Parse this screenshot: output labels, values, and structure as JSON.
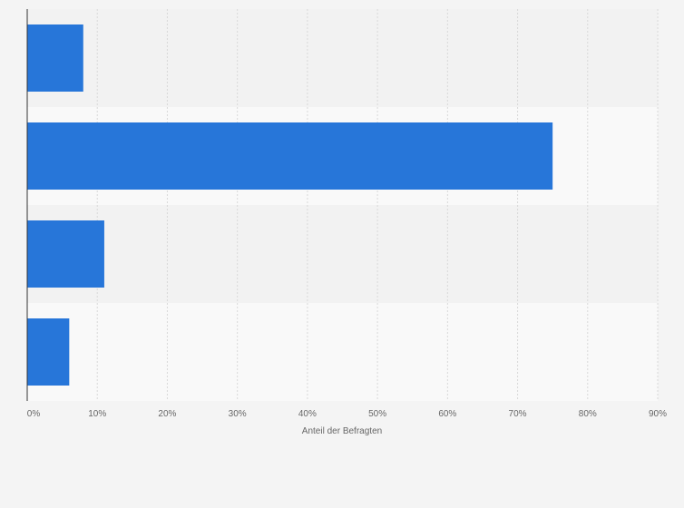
{
  "chart_data": {
    "type": "bar",
    "orientation": "horizontal",
    "categories": [
      "",
      "",
      "",
      ""
    ],
    "values": [
      8,
      75,
      11,
      6
    ],
    "title": "",
    "xlabel": "Anteil der Befragten",
    "ylabel": "",
    "xlim": [
      0,
      90
    ],
    "xticks": [
      0,
      10,
      20,
      30,
      40,
      50,
      60,
      70,
      80,
      90
    ],
    "tick_suffix": "%",
    "grid": true,
    "legend": "none",
    "colors": {
      "bar": "#2776d9",
      "band_a": "#f2f2f2",
      "band_b": "#f9f9f9",
      "grid": "#d9d9d9",
      "axis": "#333333"
    }
  }
}
